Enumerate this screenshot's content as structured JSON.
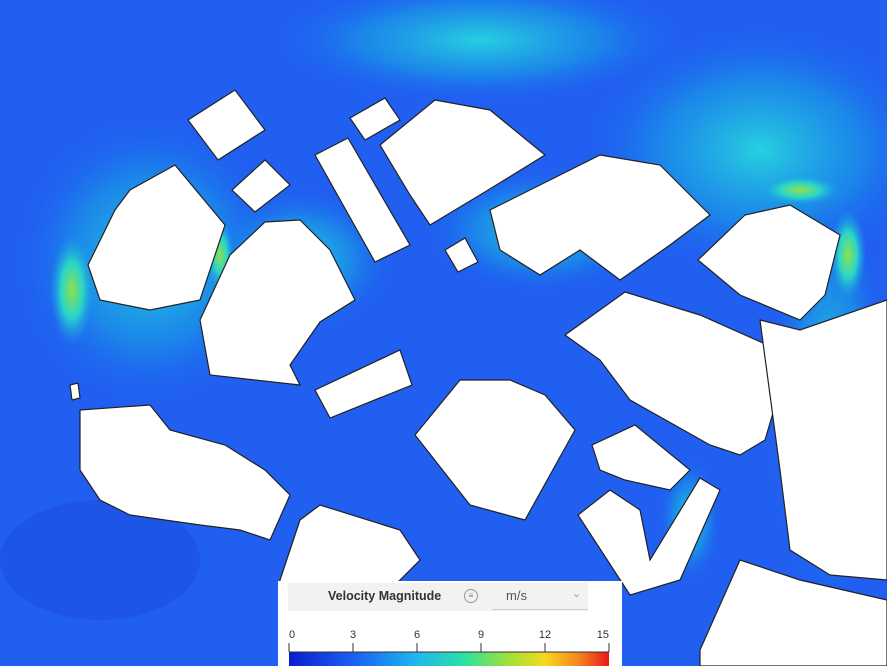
{
  "legend": {
    "title": "Velocity Magnitude",
    "unit": "m/s",
    "ticks": [
      0,
      3,
      6,
      9,
      12,
      15
    ]
  }
}
